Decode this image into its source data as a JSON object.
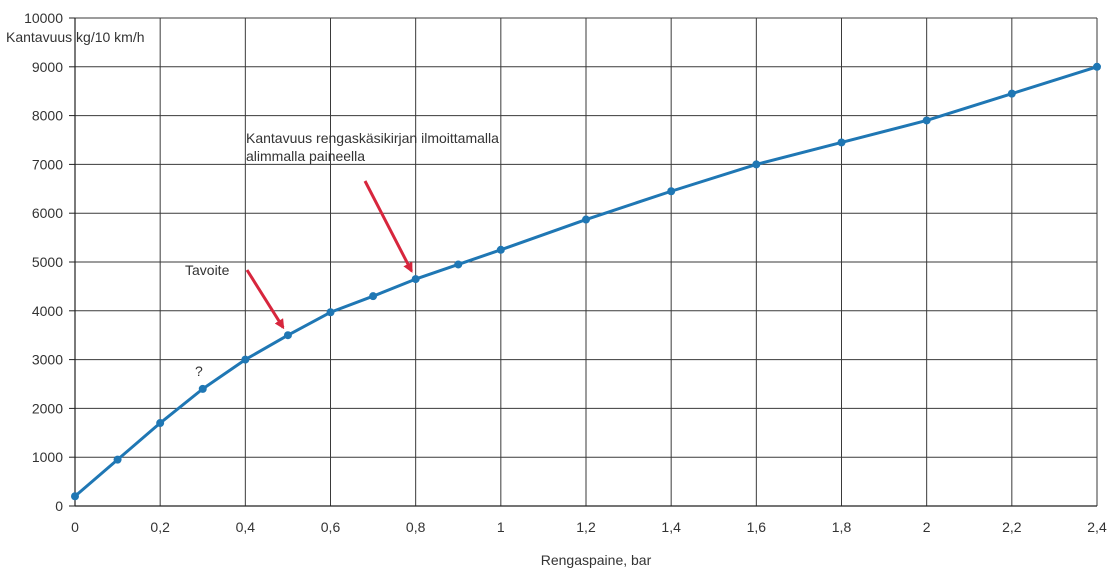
{
  "chart_data": {
    "type": "line",
    "ylabel": "Kantavuus kg/10 km/h",
    "xlabel": "Rengaspaine, bar",
    "xlim": [
      0,
      2.4
    ],
    "ylim": [
      0,
      10000
    ],
    "x_ticks": [
      0,
      0.2,
      0.4,
      0.6,
      0.8,
      1,
      1.2,
      1.4,
      1.6,
      1.8,
      2,
      2.2,
      2.4
    ],
    "x_tick_labels": [
      "0",
      "0,2",
      "0,4",
      "0,6",
      "0,8",
      "1",
      "1,2",
      "1,4",
      "1,6",
      "1,8",
      "2",
      "2,2",
      "2,4"
    ],
    "y_ticks": [
      0,
      1000,
      2000,
      3000,
      4000,
      5000,
      6000,
      7000,
      8000,
      9000,
      10000
    ],
    "y_tick_labels": [
      "0",
      "1000",
      "2000",
      "3000",
      "4000",
      "5000",
      "6000",
      "7000",
      "8000",
      "9000",
      "10000"
    ],
    "grid": true,
    "legend": "none",
    "line_color": "#1f77b4",
    "arrow_color": "#d7263d",
    "series": [
      {
        "x": [
          0,
          0.1,
          0.2,
          0.3,
          0.4,
          0.5,
          0.6,
          0.7,
          0.8,
          0.9,
          1,
          1.2,
          1.4,
          1.6,
          1.8,
          2,
          2.2,
          2.4
        ],
        "y": [
          200,
          950,
          1700,
          2400,
          3000,
          3500,
          3970,
          4300,
          4650,
          4950,
          5250,
          5870,
          6450,
          7000,
          7450,
          7900,
          8450,
          9000
        ]
      }
    ],
    "annotations": [
      {
        "id": "tavoite",
        "lines": [
          "Tavoite"
        ],
        "target_x": 0.5,
        "target_y": 3500
      },
      {
        "id": "kasikirja",
        "lines": [
          "Kantavuus rengaskäsikirjan ilmoittamalla",
          "alimmalla paineella"
        ],
        "target_x": 0.8,
        "target_y": 4650
      },
      {
        "id": "question",
        "lines": [
          "?"
        ],
        "target_x": 0.3,
        "target_y": 2400
      }
    ]
  }
}
